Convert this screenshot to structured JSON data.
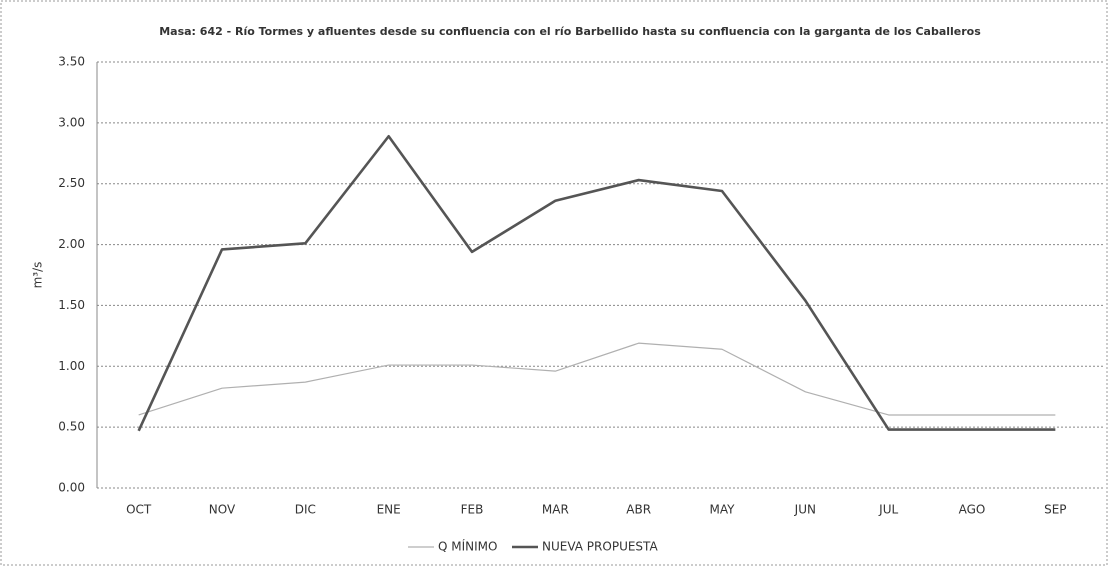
{
  "chart_data": {
    "type": "line",
    "title": "Masa: 642 - Río Tormes y afluentes desde su confluencia con el río Barbellido hasta su confluencia con la garganta de los Caballeros",
    "y_label": "m³/s",
    "categories": [
      "OCT",
      "NOV",
      "DIC",
      "ENE",
      "FEB",
      "MAR",
      "ABR",
      "MAY",
      "JUN",
      "JUL",
      "AGO",
      "SEP"
    ],
    "series": [
      {
        "name": "Q MÍNIMO",
        "color": "#b0b0b0",
        "values": [
          0.6,
          0.82,
          0.87,
          1.01,
          1.01,
          0.96,
          1.19,
          1.14,
          0.79,
          0.6,
          0.6,
          0.6
        ]
      },
      {
        "name": "NUEVA PROPUESTA",
        "color": "#555555",
        "values": [
          0.47,
          1.96,
          2.01,
          2.89,
          1.94,
          2.36,
          2.53,
          2.44,
          1.54,
          0.48,
          0.48,
          0.48
        ]
      }
    ],
    "ylim": [
      0,
      3.5
    ],
    "yticks": [
      {
        "value": 0,
        "label": "0.00"
      },
      {
        "value": 0.5,
        "label": "0.50"
      },
      {
        "value": 1,
        "label": "1.00"
      },
      {
        "value": 1.5,
        "label": "1.50"
      },
      {
        "value": 2,
        "label": "2.00"
      },
      {
        "value": 2.5,
        "label": "2.50"
      },
      {
        "value": 3,
        "label": "3.00"
      },
      {
        "value": 3.5,
        "label": "3.50"
      }
    ],
    "grid": true,
    "legend": "bottom"
  }
}
